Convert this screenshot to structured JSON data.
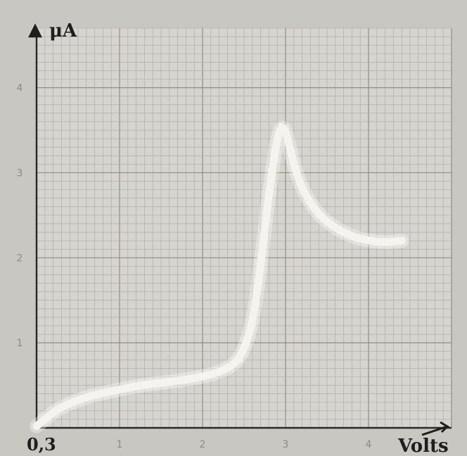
{
  "chart_data": {
    "type": "line",
    "ylabel": "μA",
    "xlabel": "Volts",
    "origin_label": "0,3",
    "x_ticks": [
      1,
      2,
      3,
      4
    ],
    "y_ticks": [
      1,
      2,
      3,
      4
    ],
    "xlim": [
      0,
      5
    ],
    "ylim": [
      0,
      4.7
    ],
    "grid": true,
    "legend": "none",
    "series": [
      {
        "color": "#f4f3ee",
        "x": [
          0.0,
          0.1,
          0.25,
          0.5,
          0.75,
          1.0,
          1.25,
          1.5,
          1.75,
          2.0,
          2.25,
          2.45,
          2.6,
          2.7,
          2.78,
          2.85,
          2.9,
          2.95,
          3.0,
          3.05,
          3.1,
          3.2,
          3.4,
          3.6,
          3.8,
          4.0,
          4.2,
          4.4
        ],
        "y": [
          0.02,
          0.1,
          0.22,
          0.33,
          0.4,
          0.45,
          0.5,
          0.53,
          0.56,
          0.6,
          0.67,
          0.8,
          1.2,
          1.9,
          2.6,
          3.1,
          3.4,
          3.55,
          3.5,
          3.3,
          3.1,
          2.8,
          2.5,
          2.35,
          2.25,
          2.2,
          2.18,
          2.2
        ]
      }
    ]
  }
}
